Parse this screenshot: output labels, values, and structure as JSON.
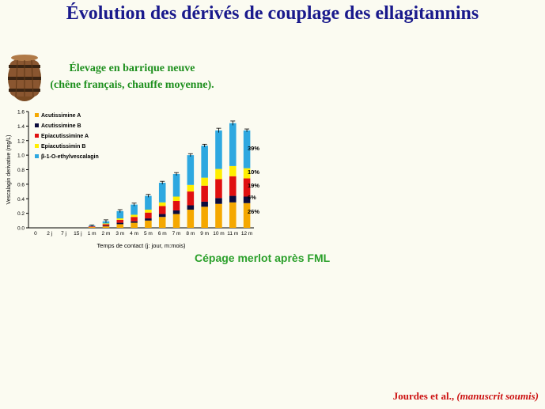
{
  "title": "Évolution des dérivés de couplage des ellagitannins",
  "subtitle_line1": "Élevage en barrique neuve",
  "subtitle_line2": "(chêne français, chauffe moyenne).",
  "caption": "Cépage merlot après FML",
  "citation_authors": "Jourdes et al.,",
  "citation_note": "(manuscrit soumis)",
  "colors": {
    "title": "#1a1a8c",
    "subtitle": "#1d8f1d",
    "caption": "#2ba02b",
    "citation": "#cc1111"
  },
  "chart_data": {
    "type": "bar",
    "stacked": true,
    "xlabel": "Temps de contact (j: jour, m:mois)",
    "ylabel": "Vescalagin derivative (mg/L)",
    "ylim": [
      0,
      1.6
    ],
    "yticks": [
      "0.0",
      "0.2",
      "0.4",
      "0.6",
      "0.8",
      "1.0",
      "1.2",
      "1.4",
      "1.6"
    ],
    "categories": [
      "0",
      "2 j",
      "7 j",
      "15 j",
      "1 m",
      "2 m",
      "3 m",
      "4 m",
      "5 m",
      "6 m",
      "7 m",
      "8 m",
      "9 m",
      "10 m",
      "11 m",
      "12 m"
    ],
    "legend_position": "top-left",
    "series": [
      {
        "name": "Acutissimine A",
        "color": "#f5a800",
        "values": [
          0,
          0,
          0,
          0,
          0.01,
          0.02,
          0.05,
          0.07,
          0.1,
          0.15,
          0.19,
          0.25,
          0.29,
          0.33,
          0.35,
          0.34
        ]
      },
      {
        "name": "Acutissimine B",
        "color": "#0b0b3c",
        "values": [
          0,
          0,
          0,
          0,
          0,
          0.01,
          0.02,
          0.02,
          0.03,
          0.04,
          0.05,
          0.06,
          0.07,
          0.08,
          0.09,
          0.09
        ]
      },
      {
        "name": "Epiacutissimine A",
        "color": "#e01010",
        "values": [
          0,
          0,
          0,
          0,
          0.01,
          0.02,
          0.04,
          0.06,
          0.08,
          0.11,
          0.13,
          0.19,
          0.22,
          0.26,
          0.27,
          0.25
        ]
      },
      {
        "name": "Epiacutissimin B",
        "color": "#ffee00",
        "values": [
          0,
          0,
          0,
          0,
          0,
          0.01,
          0.02,
          0.03,
          0.04,
          0.05,
          0.06,
          0.09,
          0.11,
          0.14,
          0.14,
          0.14
        ]
      },
      {
        "name": "β-1-O-ethylvescalagin",
        "color": "#2ea8e0",
        "values": [
          0,
          0,
          0,
          0,
          0.01,
          0.03,
          0.1,
          0.14,
          0.19,
          0.27,
          0.31,
          0.41,
          0.44,
          0.53,
          0.59,
          0.52
        ]
      }
    ],
    "errors": [
      0,
      0,
      0,
      0,
      0.01,
      0.02,
      0.02,
      0.02,
      0.02,
      0.02,
      0.02,
      0.02,
      0.02,
      0.03,
      0.03,
      0.02
    ],
    "annotations": [
      "39%",
      "10%",
      "19%",
      "6%",
      "26%"
    ]
  }
}
